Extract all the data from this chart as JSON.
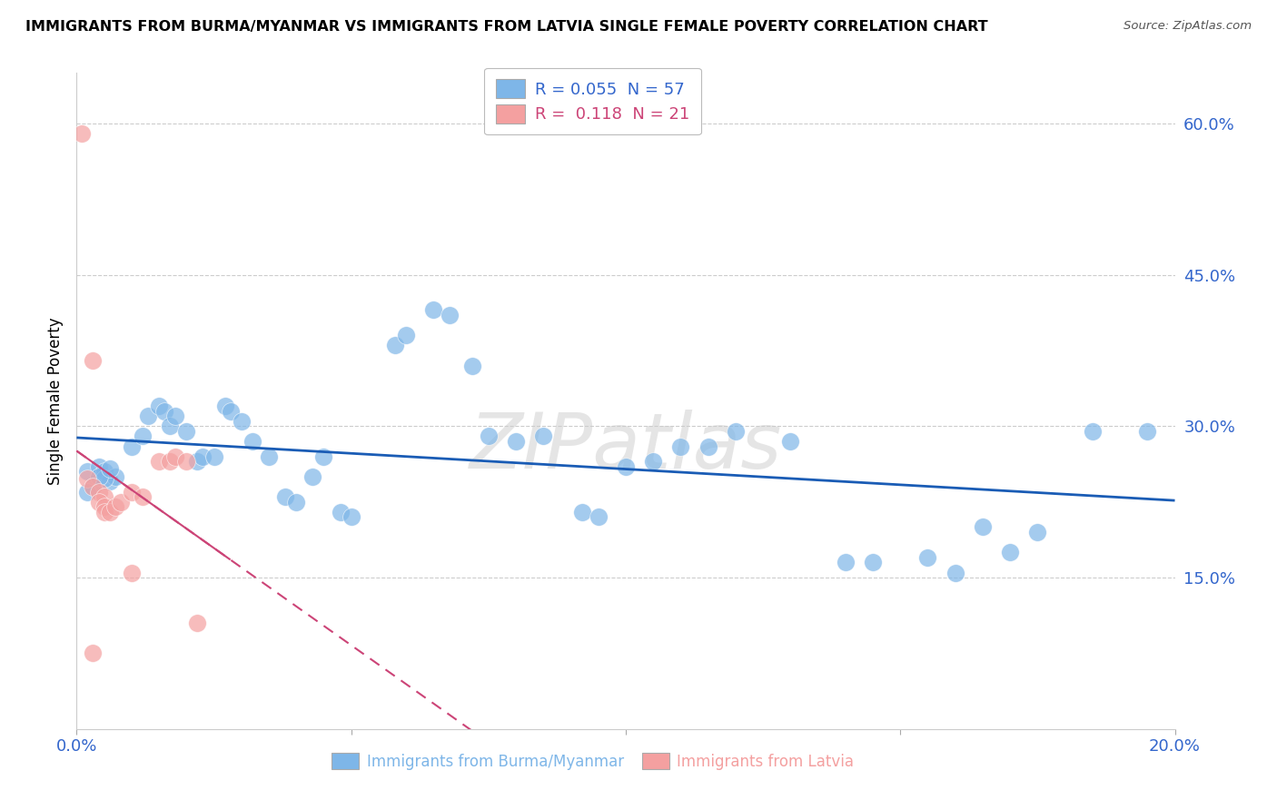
{
  "title": "IMMIGRANTS FROM BURMA/MYANMAR VS IMMIGRANTS FROM LATVIA SINGLE FEMALE POVERTY CORRELATION CHART",
  "source": "Source: ZipAtlas.com",
  "xlabel_bottom": "Immigrants from Burma/Myanmar",
  "xlabel_bottom2": "Immigrants from Latvia",
  "ylabel": "Single Female Poverty",
  "xlim": [
    0.0,
    0.2
  ],
  "ylim": [
    0.0,
    0.65
  ],
  "ytick_labels": [
    "15.0%",
    "30.0%",
    "45.0%",
    "60.0%"
  ],
  "ytick_vals": [
    0.15,
    0.3,
    0.45,
    0.6
  ],
  "watermark": "ZIPatlas",
  "legend_R1": "0.055",
  "legend_N1": "57",
  "legend_R2": "0.118",
  "legend_N2": "21",
  "color_blue": "#7EB6E8",
  "color_pink": "#F4A0A0",
  "line_color_blue": "#1A5CB5",
  "line_color_pink": "#CC4477",
  "background_color": "#FFFFFF",
  "scatter_blue": [
    [
      0.002,
      0.255
    ],
    [
      0.004,
      0.26
    ],
    [
      0.005,
      0.255
    ],
    [
      0.006,
      0.245
    ],
    [
      0.007,
      0.25
    ],
    [
      0.003,
      0.24
    ],
    [
      0.005,
      0.248
    ],
    [
      0.002,
      0.235
    ],
    [
      0.004,
      0.25
    ],
    [
      0.006,
      0.258
    ],
    [
      0.01,
      0.28
    ],
    [
      0.012,
      0.29
    ],
    [
      0.013,
      0.31
    ],
    [
      0.015,
      0.32
    ],
    [
      0.016,
      0.315
    ],
    [
      0.017,
      0.3
    ],
    [
      0.018,
      0.31
    ],
    [
      0.02,
      0.295
    ],
    [
      0.022,
      0.265
    ],
    [
      0.023,
      0.27
    ],
    [
      0.025,
      0.27
    ],
    [
      0.027,
      0.32
    ],
    [
      0.028,
      0.315
    ],
    [
      0.03,
      0.305
    ],
    [
      0.032,
      0.285
    ],
    [
      0.035,
      0.27
    ],
    [
      0.038,
      0.23
    ],
    [
      0.04,
      0.225
    ],
    [
      0.043,
      0.25
    ],
    [
      0.045,
      0.27
    ],
    [
      0.048,
      0.215
    ],
    [
      0.05,
      0.21
    ],
    [
      0.058,
      0.38
    ],
    [
      0.06,
      0.39
    ],
    [
      0.065,
      0.415
    ],
    [
      0.068,
      0.41
    ],
    [
      0.072,
      0.36
    ],
    [
      0.075,
      0.29
    ],
    [
      0.08,
      0.285
    ],
    [
      0.085,
      0.29
    ],
    [
      0.092,
      0.215
    ],
    [
      0.095,
      0.21
    ],
    [
      0.1,
      0.26
    ],
    [
      0.105,
      0.265
    ],
    [
      0.11,
      0.28
    ],
    [
      0.115,
      0.28
    ],
    [
      0.12,
      0.295
    ],
    [
      0.13,
      0.285
    ],
    [
      0.14,
      0.165
    ],
    [
      0.145,
      0.165
    ],
    [
      0.155,
      0.17
    ],
    [
      0.16,
      0.155
    ],
    [
      0.165,
      0.2
    ],
    [
      0.17,
      0.175
    ],
    [
      0.175,
      0.195
    ],
    [
      0.185,
      0.295
    ],
    [
      0.195,
      0.295
    ]
  ],
  "scatter_pink": [
    [
      0.001,
      0.59
    ],
    [
      0.003,
      0.365
    ],
    [
      0.002,
      0.248
    ],
    [
      0.003,
      0.24
    ],
    [
      0.004,
      0.235
    ],
    [
      0.005,
      0.23
    ],
    [
      0.004,
      0.225
    ],
    [
      0.005,
      0.22
    ],
    [
      0.005,
      0.215
    ],
    [
      0.006,
      0.215
    ],
    [
      0.007,
      0.22
    ],
    [
      0.008,
      0.225
    ],
    [
      0.01,
      0.235
    ],
    [
      0.012,
      0.23
    ],
    [
      0.015,
      0.265
    ],
    [
      0.017,
      0.265
    ],
    [
      0.018,
      0.27
    ],
    [
      0.02,
      0.265
    ],
    [
      0.022,
      0.105
    ],
    [
      0.01,
      0.155
    ],
    [
      0.003,
      0.075
    ]
  ]
}
